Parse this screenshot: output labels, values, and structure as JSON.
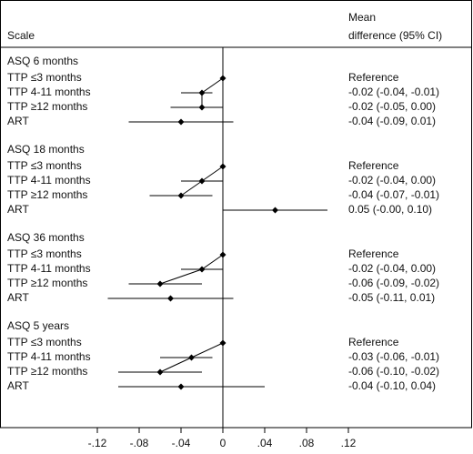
{
  "chart_data": {
    "type": "forest",
    "label_header": "Scale",
    "value_header": [
      "Mean",
      "difference (95% CI)"
    ],
    "xlim": [
      -0.14,
      0.14
    ],
    "xticks": [
      {
        "value": -0.12,
        "label": "-.12"
      },
      {
        "value": -0.08,
        "label": "-.08"
      },
      {
        "value": -0.04,
        "label": "-.04"
      },
      0,
      {
        "value": 0.04,
        "label": ".04"
      },
      {
        "value": 0.08,
        "label": ".08"
      },
      {
        "value": 0.12,
        "label": ".12"
      }
    ],
    "color": "#000000",
    "groups": [
      {
        "name": "ASQ 6 months",
        "rows": [
          {
            "label": "TTP ≤3 months",
            "value": 0,
            "lower": null,
            "upper": null,
            "value_label": "Reference"
          },
          {
            "label": "TTP 4-11 months",
            "value": -0.02,
            "lower": -0.04,
            "upper": -0.01,
            "value_label": "-0.02 (-0.04, -0.01)"
          },
          {
            "label": "TTP ≥12 months",
            "value": -0.02,
            "lower": -0.05,
            "upper": 0.0,
            "value_label": "-0.02 (-0.05, 0.00)"
          },
          {
            "label": "ART",
            "value": -0.04,
            "lower": -0.09,
            "upper": 0.01,
            "value_label": "-0.04 (-0.09, 0.01)"
          }
        ]
      },
      {
        "name": "ASQ 18 months",
        "rows": [
          {
            "label": "TTP ≤3 months",
            "value": 0,
            "lower": null,
            "upper": null,
            "value_label": "Reference"
          },
          {
            "label": "TTP 4-11 months",
            "value": -0.02,
            "lower": -0.04,
            "upper": 0.0,
            "value_label": "-0.02 (-0.04, 0.00)"
          },
          {
            "label": "TTP ≥12 months",
            "value": -0.04,
            "lower": -0.07,
            "upper": -0.01,
            "value_label": "-0.04 (-0.07, -0.01)"
          },
          {
            "label": "ART",
            "value": 0.05,
            "lower": -0.0,
            "upper": 0.1,
            "value_label": "0.05 (-0.00, 0.10)"
          }
        ]
      },
      {
        "name": "ASQ 36 months",
        "rows": [
          {
            "label": "TTP ≤3 months",
            "value": 0,
            "lower": null,
            "upper": null,
            "value_label": "Reference"
          },
          {
            "label": "TTP 4-11 months",
            "value": -0.02,
            "lower": -0.04,
            "upper": 0.0,
            "value_label": "-0.02 (-0.04, 0.00)"
          },
          {
            "label": "TTP ≥12 months",
            "value": -0.06,
            "lower": -0.09,
            "upper": -0.02,
            "value_label": "-0.06 (-0.09, -0.02)"
          },
          {
            "label": "ART",
            "value": -0.05,
            "lower": -0.11,
            "upper": 0.01,
            "value_label": "-0.05 (-0.11, 0.01)"
          }
        ]
      },
      {
        "name": "ASQ 5 years",
        "rows": [
          {
            "label": "TTP ≤3 months",
            "value": 0,
            "lower": null,
            "upper": null,
            "value_label": "Reference"
          },
          {
            "label": "TTP 4-11 months",
            "value": -0.03,
            "lower": -0.06,
            "upper": -0.01,
            "value_label": "-0.03 (-0.06, -0.01)"
          },
          {
            "label": "TTP ≥12 months",
            "value": -0.06,
            "lower": -0.1,
            "upper": -0.02,
            "value_label": "-0.06 (-0.10, -0.02)"
          },
          {
            "label": "ART",
            "value": -0.04,
            "lower": -0.1,
            "upper": 0.04,
            "value_label": "-0.04 (-0.10, 0.04)"
          }
        ]
      }
    ]
  }
}
